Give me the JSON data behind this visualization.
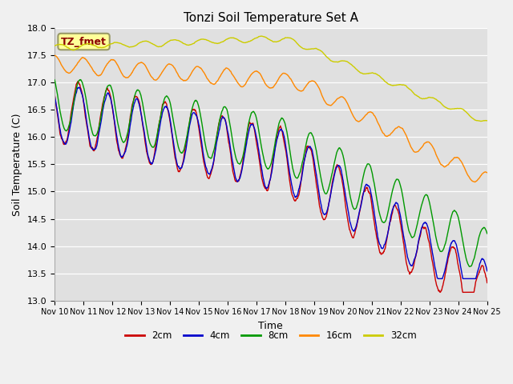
{
  "title": "Tonzi Soil Temperature Set A",
  "xlabel": "Time",
  "ylabel": "Soil Temperature (C)",
  "ylim": [
    13.0,
    18.0
  ],
  "yticks": [
    13.0,
    13.5,
    14.0,
    14.5,
    15.0,
    15.5,
    16.0,
    16.5,
    17.0,
    17.5,
    18.0
  ],
  "xtick_labels": [
    "Nov 10",
    "Nov 11",
    "Nov 12",
    "Nov 13",
    "Nov 14",
    "Nov 15",
    "Nov 16",
    "Nov 17",
    "Nov 18",
    "Nov 19",
    "Nov 20",
    "Nov 21",
    "Nov 22",
    "Nov 23",
    "Nov 24",
    "Nov 25"
  ],
  "colors": {
    "2cm": "#cc0000",
    "4cm": "#0000cc",
    "8cm": "#009900",
    "16cm": "#ff8800",
    "32cm": "#cccc00"
  },
  "annotation_text": "TZ_fmet",
  "annotation_box_color": "#ffff99",
  "annotation_text_color": "#8b0000",
  "fig_bg_color": "#f0f0f0",
  "plot_bg_color": "#e0e0e0"
}
